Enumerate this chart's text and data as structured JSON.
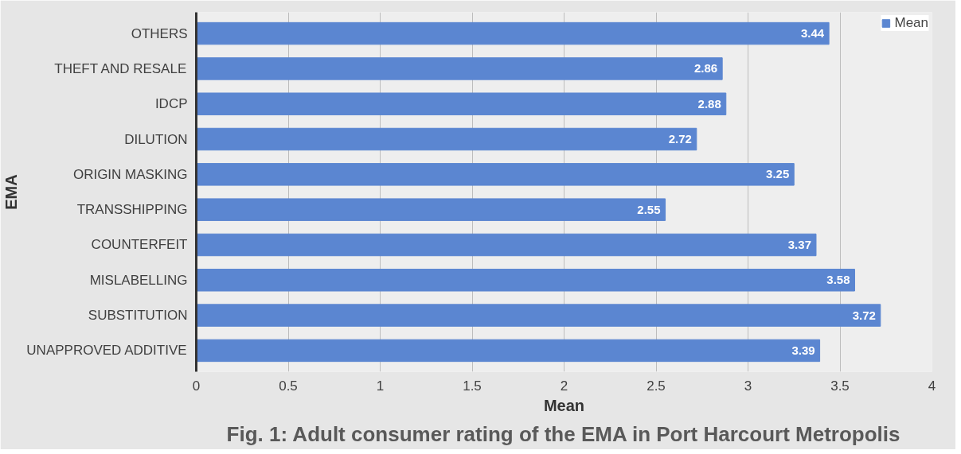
{
  "chart_data": {
    "type": "bar",
    "orientation": "horizontal",
    "title": "Fig. 1: Adult consumer rating of the EMA in Port Harcourt Metropolis",
    "xlabel": "Mean",
    "ylabel": "EMA",
    "categories": [
      "OTHERS",
      "THEFT AND RESALE",
      "IDCP",
      "DILUTION",
      "ORIGIN MASKING",
      "TRANSSHIPPING",
      "COUNTERFEIT",
      "MISLABELLING",
      "SUBSTITUTION",
      "UNAPPROVED ADDITIVE"
    ],
    "series": [
      {
        "name": "Mean",
        "color": "#5b86d1",
        "values": [
          3.44,
          2.86,
          2.88,
          2.72,
          3.25,
          2.55,
          3.37,
          3.58,
          3.72,
          3.39
        ]
      }
    ],
    "xlim": [
      0,
      4
    ],
    "xticks": [
      0,
      0.5,
      1,
      1.5,
      2,
      2.5,
      3,
      3.5,
      4
    ],
    "grid": "x",
    "legend": "top right",
    "data_labels": true
  }
}
